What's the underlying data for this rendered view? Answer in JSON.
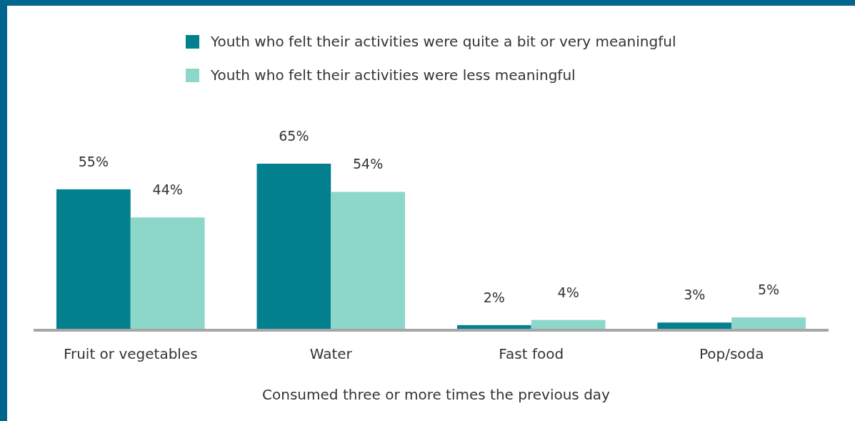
{
  "chart_data": {
    "type": "bar",
    "xlabel": "Consumed three or more times the previous day",
    "categories": [
      "Fruit or vegetables",
      "Water",
      "Fast food",
      "Pop/soda"
    ],
    "series": [
      {
        "name": "Youth who felt their activities were quite a bit or very meaningful",
        "color": "#03808e",
        "values": [
          55,
          65,
          2,
          3
        ],
        "value_labels": [
          "55%",
          "65%",
          "2%",
          "3%"
        ]
      },
      {
        "name": "Youth who felt their activities were less meaningful",
        "color": "#8dd6ca",
        "values": [
          44,
          54,
          4,
          5
        ],
        "value_labels": [
          "44%",
          "54%",
          "4%",
          "5%"
        ]
      }
    ],
    "ylim": [
      0,
      65
    ],
    "legend": "top",
    "tick_labels": "x"
  }
}
